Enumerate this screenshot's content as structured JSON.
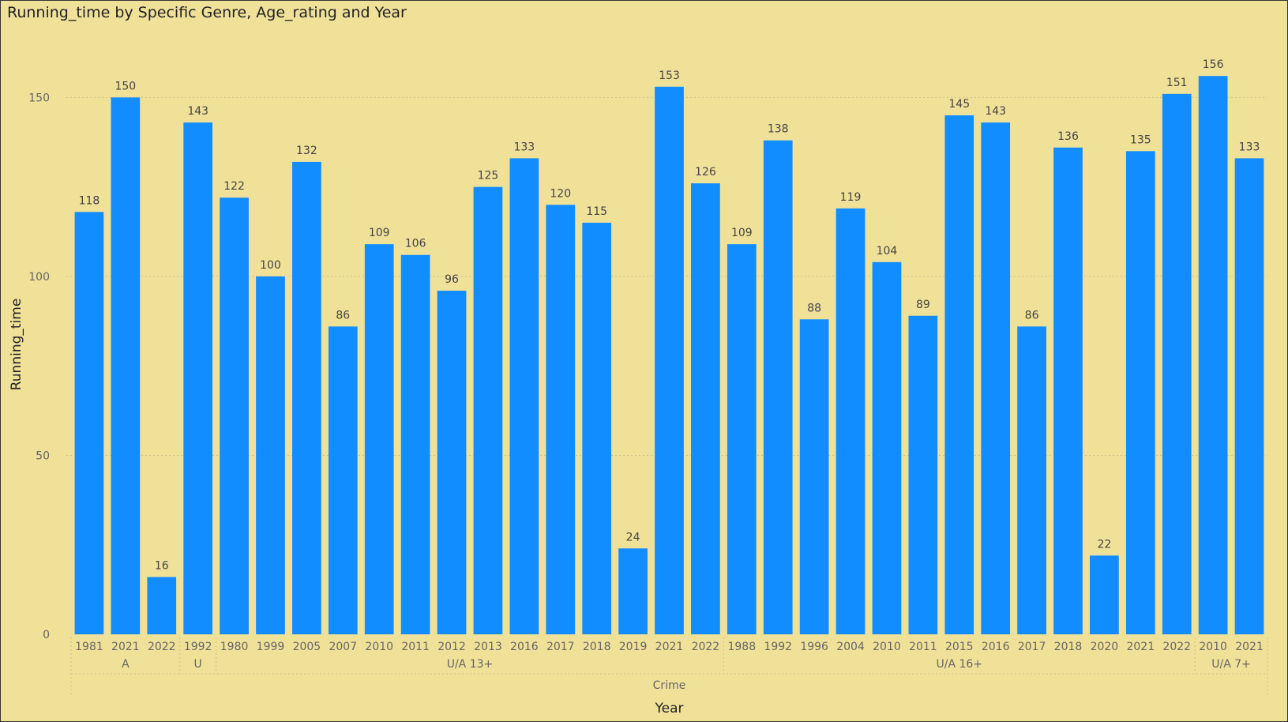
{
  "title": "Running_time by Specific Genre, Age_rating and Year",
  "colors": {
    "bar": "#118dff",
    "background": "#f0e199",
    "grid": "#c9bf8a"
  },
  "chart_data": {
    "type": "bar",
    "title": "Running_time by Specific Genre, Age_rating and Year",
    "xlabel": "Year",
    "ylabel": "Running_time",
    "ylim": [
      0,
      162
    ],
    "yticks": [
      0,
      50,
      100,
      150
    ],
    "grid": true,
    "categories": [
      "1981",
      "2021",
      "2022",
      "1992",
      "1980",
      "1999",
      "2005",
      "2007",
      "2010",
      "2011",
      "2012",
      "2013",
      "2016",
      "2017",
      "2018",
      "2019",
      "2021",
      "2022",
      "1988",
      "1992",
      "1996",
      "2004",
      "2010",
      "2011",
      "2015",
      "2016",
      "2017",
      "2018",
      "2020",
      "2021",
      "2022",
      "2010",
      "2021"
    ],
    "values": [
      118,
      150,
      16,
      143,
      122,
      100,
      132,
      86,
      109,
      106,
      96,
      125,
      133,
      120,
      115,
      24,
      153,
      126,
      109,
      138,
      88,
      119,
      104,
      89,
      145,
      143,
      86,
      136,
      22,
      135,
      151,
      156,
      133
    ],
    "groups": [
      {
        "label": "A",
        "start": 0,
        "end": 2
      },
      {
        "label": "U",
        "start": 3,
        "end": 3
      },
      {
        "label": "U/A 13+",
        "start": 4,
        "end": 17
      },
      {
        "label": "U/A 16+",
        "start": 18,
        "end": 30
      },
      {
        "label": "U/A 7+",
        "start": 31,
        "end": 32
      }
    ],
    "supergroup": "Crime"
  }
}
